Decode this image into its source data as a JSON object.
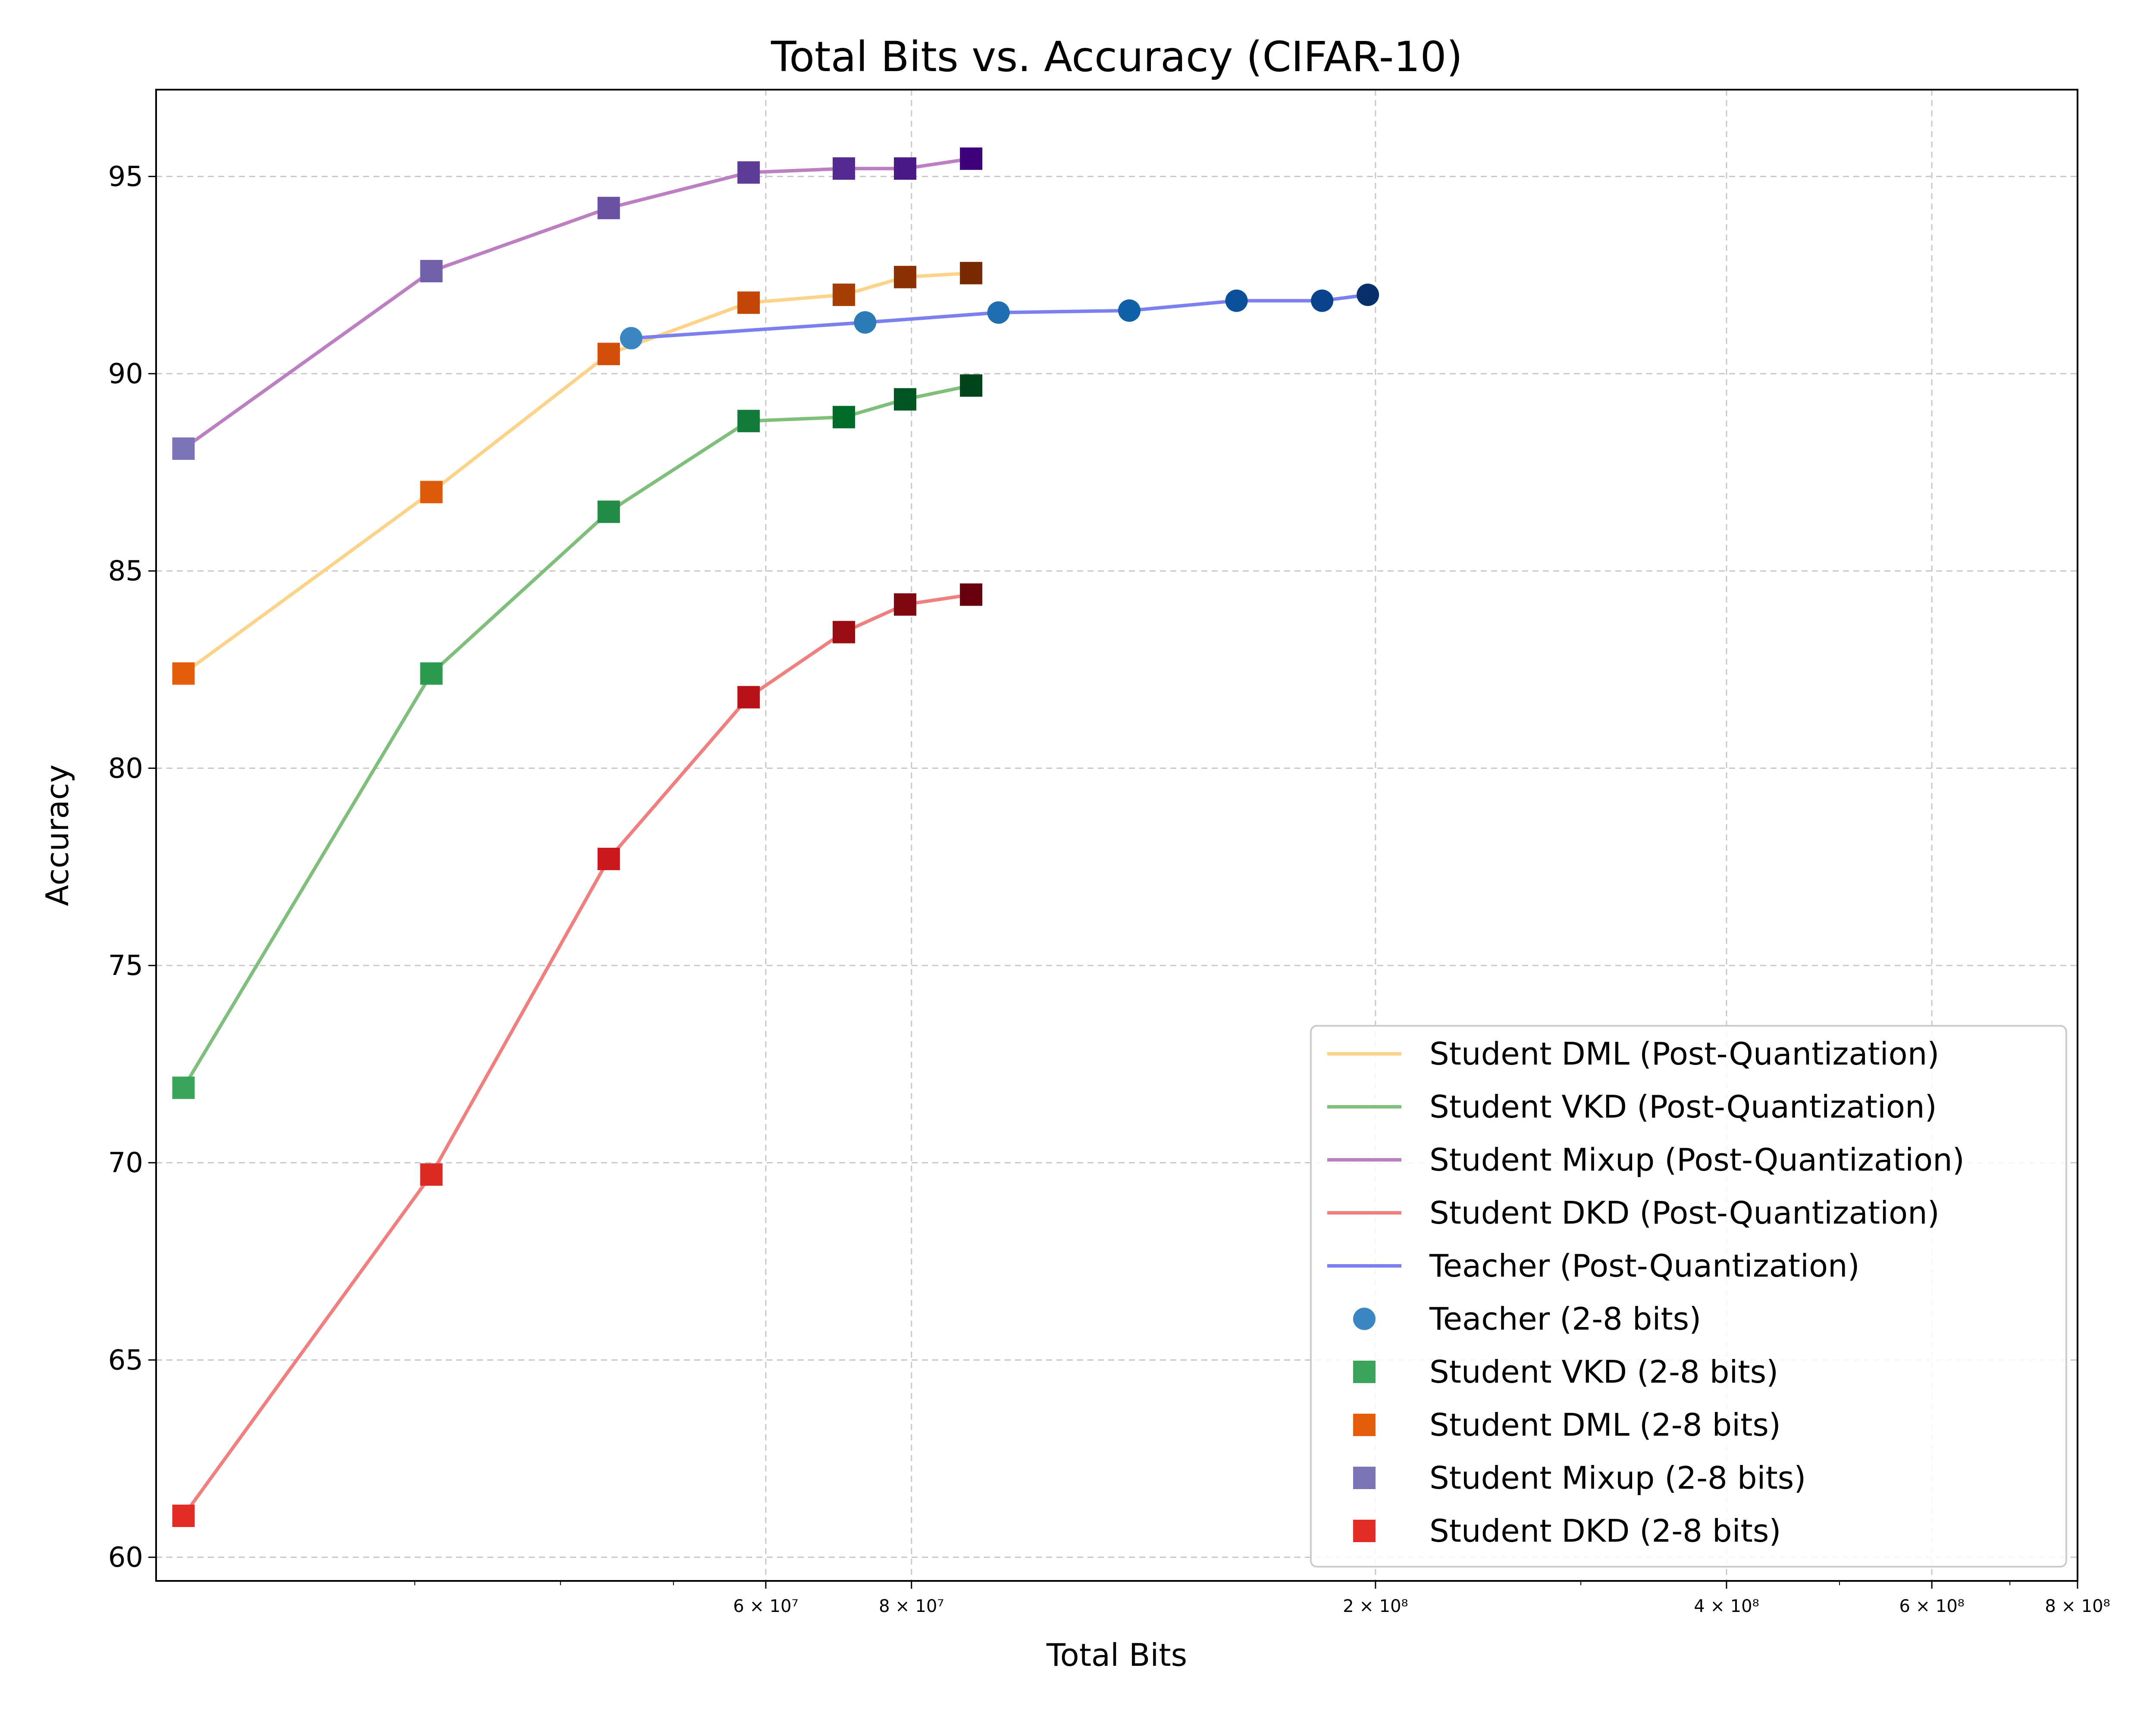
{
  "chart_data": {
    "type": "line",
    "title": "Total Bits vs. Accuracy (CIFAR-10)",
    "xlabel": "Total Bits",
    "ylabel": "Accuracy",
    "xscale": "log",
    "xlim": [
      18000000,
      800000000
    ],
    "ylim": [
      59.4,
      97.2
    ],
    "grid": true,
    "legend_position": "lower-right",
    "yticks": [
      {
        "v": 60,
        "label": "60"
      },
      {
        "v": 65,
        "label": "65"
      },
      {
        "v": 70,
        "label": "70"
      },
      {
        "v": 75,
        "label": "75"
      },
      {
        "v": 80,
        "label": "80"
      },
      {
        "v": 85,
        "label": "85"
      },
      {
        "v": 90,
        "label": "90"
      },
      {
        "v": 95,
        "label": "95"
      }
    ],
    "xticks_major": [
      {
        "v": 60000000,
        "label": "6 × 10⁷"
      },
      {
        "v": 80000000,
        "label": "8 × 10⁷"
      },
      {
        "v": 200000000,
        "label": "2 × 10⁸"
      },
      {
        "v": 400000000,
        "label": "4 × 10⁸"
      },
      {
        "v": 600000000,
        "label": "6 × 10⁸"
      },
      {
        "v": 800000000,
        "label": "8 × 10⁸"
      }
    ],
    "xticks_minor": [
      30000000,
      40000000,
      50000000,
      300000000,
      500000000,
      700000000
    ],
    "series": [
      {
        "name": "Student DML (Post-Quantization)",
        "line_color": "#fdd38a",
        "marker": "square",
        "x": [
          19000000,
          31000000,
          44000000,
          58000000,
          70000000,
          79000000,
          90000000
        ],
        "y": [
          82.4,
          87.0,
          90.5,
          91.8,
          92.0,
          92.45,
          92.55
        ],
        "point_colors": [
          "#e65c0d",
          "#e05a0b",
          "#d24e09",
          "#c44506",
          "#a83d05",
          "#8c3103",
          "#7a2a02"
        ]
      },
      {
        "name": "Student VKD (Post-Quantization)",
        "line_color": "#7fbf7b",
        "marker": "square",
        "x": [
          19000000,
          31000000,
          44000000,
          58000000,
          70000000,
          79000000,
          90000000
        ],
        "y": [
          71.9,
          82.4,
          86.5,
          88.8,
          88.9,
          89.35,
          89.7
        ],
        "point_colors": [
          "#3aa45a",
          "#2e9a4f",
          "#238b45",
          "#137c3c",
          "#006d2c",
          "#005522",
          "#00441b"
        ]
      },
      {
        "name": "Student Mixup (Post-Quantization)",
        "line_color": "#bb7fc2",
        "marker": "square",
        "x": [
          19000000,
          31000000,
          44000000,
          58000000,
          70000000,
          79000000,
          90000000
        ],
        "y": [
          88.1,
          92.6,
          94.2,
          95.1,
          95.2,
          95.2,
          95.45
        ],
        "point_colors": [
          "#7b74b6",
          "#7260ac",
          "#6a51a3",
          "#5e3d9a",
          "#542b91",
          "#4a1b88",
          "#3f007d"
        ]
      },
      {
        "name": "Student DKD (Post-Quantization)",
        "line_color": "#f08080",
        "marker": "square",
        "x": [
          19000000,
          31000000,
          44000000,
          58000000,
          70000000,
          79000000,
          90000000
        ],
        "y": [
          61.05,
          69.7,
          77.7,
          81.8,
          83.45,
          84.15,
          84.4
        ],
        "point_colors": [
          "#e32c28",
          "#dd2a25",
          "#cb181d",
          "#b71319",
          "#9b0c13",
          "#7e0710",
          "#67000d"
        ]
      },
      {
        "name": "Teacher (Post-Quantization)",
        "line_color": "#7b7ff0",
        "marker": "circle",
        "x": [
          46000000,
          73000000,
          95000000,
          123000000,
          152000000,
          180000000,
          197000000
        ],
        "y": [
          90.9,
          91.3,
          91.55,
          91.6,
          91.85,
          91.85,
          92.0
        ],
        "point_colors": [
          "#3a87c2",
          "#2c7bb6",
          "#1f6fb0",
          "#1161a7",
          "#0b509a",
          "#08438b",
          "#08306b"
        ]
      }
    ],
    "legend": [
      {
        "kind": "line",
        "color": "#fdd38a",
        "label": "Student DML (Post-Quantization)"
      },
      {
        "kind": "line",
        "color": "#7fbf7b",
        "label": "Student VKD (Post-Quantization)"
      },
      {
        "kind": "line",
        "color": "#bb7fc2",
        "label": "Student Mixup (Post-Quantization)"
      },
      {
        "kind": "line",
        "color": "#f08080",
        "label": "Student DKD (Post-Quantization)"
      },
      {
        "kind": "line",
        "color": "#7b7ff0",
        "label": "Teacher (Post-Quantization)"
      },
      {
        "kind": "circle",
        "color": "#3a87c2",
        "label": "Teacher (2-8 bits)"
      },
      {
        "kind": "square",
        "color": "#3aa45a",
        "label": "Student VKD (2-8 bits)"
      },
      {
        "kind": "square",
        "color": "#e65c0d",
        "label": "Student DML (2-8 bits)"
      },
      {
        "kind": "square",
        "color": "#7b74b6",
        "label": "Student Mixup (2-8 bits)"
      },
      {
        "kind": "square",
        "color": "#e32c28",
        "label": "Student DKD (2-8 bits)"
      }
    ]
  }
}
